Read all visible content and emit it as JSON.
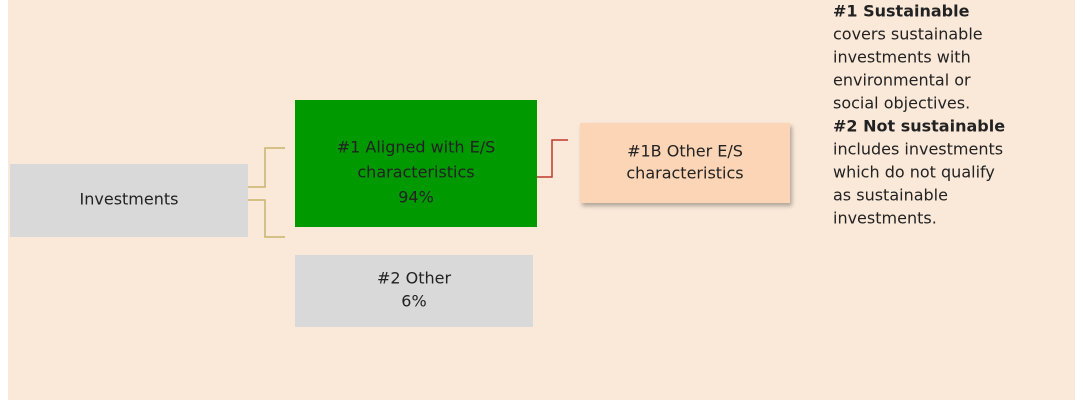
{
  "nodes": [
    {
      "lines": [
        "Investments"
      ]
    },
    {
      "lines": [
        "#1 Aligned with E/S",
        "characteristics",
        "94%"
      ]
    },
    {
      "lines": [
        "#2 Other",
        "6%"
      ]
    },
    {
      "lines": [
        "#1B Other E/S",
        "characteristics"
      ]
    }
  ],
  "legend": [
    {
      "term": "#1 Sustainable",
      "lines": [
        "covers sustainable",
        "investments with",
        "environmental or",
        "social objectives."
      ]
    },
    {
      "term": "#2 Not sustainable",
      "lines": [
        "includes investments",
        "which do not qualify",
        "as sustainable",
        "investments."
      ]
    }
  ]
}
